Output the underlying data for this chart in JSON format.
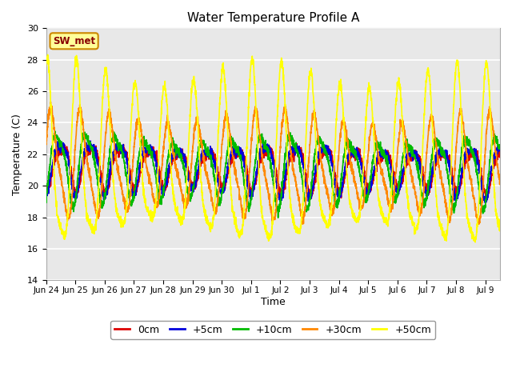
{
  "title": "Water Temperature Profile A",
  "xlabel": "Time",
  "ylabel": "Temperature (C)",
  "ylim": [
    14,
    30
  ],
  "xlim": [
    0,
    15.5
  ],
  "plot_bg": "#e8e8e8",
  "fig_bg": "#ffffff",
  "annotation_text": "SW_met",
  "annotation_color": "#880000",
  "annotation_bg": "#ffff99",
  "annotation_border": "#cc8800",
  "legend_entries": [
    "0cm",
    "+5cm",
    "+10cm",
    "+30cm",
    "+50cm"
  ],
  "line_colors": [
    "#dd0000",
    "#0000dd",
    "#00bb00",
    "#ff8800",
    "#ffff00"
  ],
  "x_tick_labels": [
    "Jun 24",
    "Jun 25",
    "Jun 26",
    "Jun 27",
    "Jun 28",
    "Jun 29",
    "Jun 30",
    "Jul 1",
    "Jul 2",
    "Jul 3",
    "Jul 4",
    "Jul 5",
    "Jul 6",
    "Jul 7",
    "Jul 8",
    "Jul 9"
  ],
  "yticks": [
    14,
    16,
    18,
    20,
    22,
    24,
    26,
    28,
    30
  ],
  "n_points": 3000,
  "base_temp": 21.3,
  "amplitudes_main": [
    1.2,
    1.4,
    1.9,
    2.8,
    4.8
  ],
  "phases_main": [
    0.3,
    0.25,
    0.15,
    -0.05,
    -0.2
  ],
  "trend_slope": -0.015,
  "noise_level": 0.15,
  "linewidth": 1.2
}
